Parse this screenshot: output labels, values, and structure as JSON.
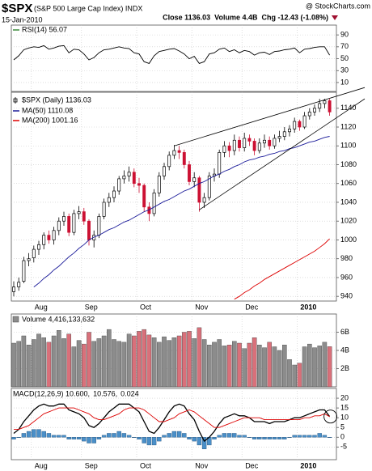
{
  "header": {
    "symbol": "$SPX",
    "name": "(S&P 500 Large Cap Index) INDX",
    "date": "15-Jan-2010",
    "source": "@ StockCharts.com",
    "stats": "Close 1136.03  Volume 4.4B  Chg -12.43 (-1.08%)"
  },
  "chart_data": [
    {
      "type": "line",
      "name": "RSI(14) 56.07",
      "color": "#000000",
      "values": [
        48,
        55,
        65,
        68,
        70,
        69,
        72,
        66,
        68,
        71,
        72,
        60,
        66,
        65,
        58,
        48,
        52,
        60,
        65,
        66,
        68,
        70,
        68,
        67,
        60,
        58,
        45,
        42,
        55,
        62,
        64,
        66,
        67,
        63,
        58,
        50,
        54,
        42,
        45,
        58,
        60,
        66,
        68,
        62,
        65,
        60,
        64,
        62,
        56,
        60,
        61,
        57,
        62,
        63,
        65,
        66,
        68,
        60,
        66,
        67,
        69,
        70,
        70,
        56.07
      ],
      "ylim": [
        -5,
        106.5
      ],
      "yticks": [
        90,
        70,
        50,
        30,
        10
      ],
      "grid": true
    },
    {
      "type": "candlestick",
      "name": "$SPX (Daily) 1136.03",
      "up_color": "#000000",
      "down_color": "#cc1133",
      "categories": [
        null,
        null,
        null,
        null,
        "Aug",
        null,
        null,
        null,
        null,
        null,
        null,
        null,
        null,
        null,
        "Sep",
        null,
        null,
        null,
        null,
        null,
        null,
        null,
        null,
        null,
        null,
        "Oct",
        null,
        null,
        null,
        null,
        null,
        null,
        null,
        null,
        null,
        null,
        "Nov",
        null,
        null,
        null,
        null,
        null,
        null,
        null,
        null,
        null,
        "Dec",
        null,
        null,
        null,
        null,
        null,
        null,
        null,
        null,
        null,
        null,
        "2010",
        null,
        null,
        null,
        null,
        null,
        null
      ],
      "open": [
        945,
        950,
        956,
        978,
        981,
        990,
        995,
        1005,
        1000,
        1010,
        1020,
        1025,
        1008,
        1028,
        1030,
        1020,
        1000,
        1005,
        1025,
        1040,
        1045,
        1052,
        1065,
        1068,
        1072,
        1060,
        1058,
        1035,
        1028,
        1050,
        1068,
        1078,
        1090,
        1095,
        1093,
        1080,
        1062,
        1066,
        1040,
        1045,
        1068,
        1070,
        1093,
        1100,
        1095,
        1106,
        1098,
        1108,
        1105,
        1095,
        1103,
        1106,
        1100,
        1108,
        1110,
        1115,
        1118,
        1126,
        1120,
        1132,
        1136,
        1140,
        1145,
        1148
      ],
      "high": [
        956,
        960,
        982,
        986,
        994,
        999,
        1008,
        1010,
        1014,
        1024,
        1030,
        1028,
        1032,
        1036,
        1034,
        1022,
        1010,
        1028,
        1044,
        1050,
        1057,
        1068,
        1074,
        1078,
        1076,
        1066,
        1060,
        1040,
        1054,
        1072,
        1082,
        1094,
        1101,
        1100,
        1096,
        1084,
        1072,
        1068,
        1050,
        1072,
        1076,
        1096,
        1105,
        1104,
        1112,
        1110,
        1114,
        1112,
        1108,
        1108,
        1112,
        1110,
        1112,
        1116,
        1120,
        1122,
        1130,
        1128,
        1136,
        1140,
        1144,
        1150,
        1150,
        1150
      ],
      "low": [
        940,
        946,
        954,
        972,
        976,
        984,
        990,
        996,
        995,
        1005,
        1015,
        1004,
        1005,
        1022,
        1016,
        994,
        992,
        1002,
        1022,
        1035,
        1040,
        1048,
        1060,
        1062,
        1056,
        1050,
        1030,
        1020,
        1025,
        1046,
        1064,
        1074,
        1086,
        1086,
        1076,
        1058,
        1056,
        1030,
        1034,
        1042,
        1062,
        1066,
        1088,
        1088,
        1090,
        1094,
        1094,
        1100,
        1090,
        1092,
        1098,
        1096,
        1097,
        1104,
        1106,
        1110,
        1114,
        1116,
        1118,
        1128,
        1132,
        1136,
        1140,
        1132
      ],
      "close": [
        950,
        955,
        978,
        980,
        990,
        995,
        1005,
        1000,
        1010,
        1020,
        1025,
        1008,
        1028,
        1030,
        1020,
        1000,
        1005,
        1025,
        1040,
        1045,
        1052,
        1065,
        1068,
        1072,
        1060,
        1058,
        1035,
        1028,
        1050,
        1068,
        1078,
        1090,
        1095,
        1093,
        1080,
        1062,
        1066,
        1040,
        1045,
        1068,
        1070,
        1093,
        1100,
        1095,
        1106,
        1098,
        1108,
        1105,
        1095,
        1103,
        1106,
        1100,
        1108,
        1110,
        1115,
        1118,
        1126,
        1120,
        1132,
        1136,
        1140,
        1145,
        1148,
        1136.03
      ],
      "series": [
        {
          "name": "MA(50) 1110.08",
          "color": "#1a1a99",
          "values": [
            null,
            null,
            null,
            null,
            950,
            954,
            959,
            963,
            968,
            972,
            977,
            982,
            986,
            991,
            995,
            1000,
            1003,
            1005,
            1008,
            1011,
            1013,
            1016,
            1019,
            1021,
            1024,
            1027,
            1030,
            1032,
            1035,
            1038,
            1041,
            1043,
            1046,
            1049,
            1052,
            1054,
            1057,
            1060,
            1062,
            1065,
            1068,
            1070,
            1073,
            1075,
            1078,
            1080,
            1083,
            1085,
            1086,
            1088,
            1089,
            1091,
            1092,
            1094,
            1095,
            1097,
            1098,
            1100,
            1102,
            1104,
            1105,
            1107,
            1109,
            1110.08
          ]
        },
        {
          "name": "MA(200) 1001.16",
          "color": "#dd0000",
          "values": [
            null,
            null,
            null,
            null,
            null,
            null,
            null,
            null,
            null,
            null,
            null,
            null,
            null,
            null,
            null,
            null,
            null,
            null,
            null,
            null,
            null,
            null,
            null,
            null,
            null,
            null,
            null,
            null,
            null,
            null,
            null,
            null,
            null,
            null,
            null,
            null,
            null,
            null,
            null,
            null,
            null,
            null,
            null,
            null,
            937,
            940,
            944,
            947,
            951,
            954,
            958,
            961,
            964,
            967,
            970,
            973,
            976,
            979,
            982,
            985,
            988,
            992,
            996,
            1001.16
          ]
        }
      ],
      "trendlines": [
        {
          "x": [
            32,
            70
          ],
          "y": [
            1100,
            1162
          ]
        },
        {
          "x": [
            37,
            70
          ],
          "y": [
            1032,
            1150
          ]
        }
      ],
      "ylim": [
        935,
        1157
      ],
      "yticks": [
        1140,
        1120,
        1100,
        1080,
        1060,
        1040,
        1020,
        1000,
        980,
        960,
        940
      ],
      "grid": true
    },
    {
      "type": "bar",
      "name": "Volume 4,416,133,632",
      "up_color": "#8c8c8c",
      "down_color": "#d9707a",
      "values": [
        4800000000,
        5000000000,
        5600000000,
        4600000000,
        5200000000,
        5800000000,
        5400000000,
        4900000000,
        5600000000,
        6200000000,
        5300000000,
        5800000000,
        4400000000,
        5100000000,
        4700000000,
        6000000000,
        5000000000,
        5300000000,
        5600000000,
        6300000000,
        5200000000,
        5000000000,
        4900000000,
        5800000000,
        5600000000,
        6100000000,
        6300000000,
        5700000000,
        5400000000,
        4900000000,
        5500000000,
        5100000000,
        5400000000,
        5600000000,
        6000000000,
        6100000000,
        5300000000,
        6500000000,
        5200000000,
        4600000000,
        4900000000,
        5200000000,
        4500000000,
        4600000000,
        5000000000,
        4800000000,
        4200000000,
        4800000000,
        5400000000,
        4600000000,
        4300000000,
        4900000000,
        4400000000,
        4000000000,
        4600000000,
        3000000000,
        2400000000,
        2600000000,
        4400000000,
        4700000000,
        4300000000,
        4500000000,
        4900000000,
        4416133632
      ],
      "ylim": [
        0,
        8000000000
      ],
      "yticks": [
        {
          "value": 6000000000,
          "label": "6B"
        },
        {
          "value": 4000000000,
          "label": "4B"
        },
        {
          "value": 2000000000,
          "label": "2B"
        }
      ],
      "grid": true
    },
    {
      "type": "line",
      "categories": [
        null,
        null,
        null,
        null,
        "Aug",
        null,
        null,
        null,
        null,
        null,
        null,
        null,
        null,
        null,
        "Sep",
        null,
        null,
        null,
        null,
        null,
        null,
        null,
        null,
        null,
        null,
        "Oct",
        null,
        null,
        null,
        null,
        null,
        null,
        null,
        null,
        null,
        null,
        "Nov",
        null,
        null,
        null,
        null,
        null,
        null,
        null,
        null,
        null,
        "Dec",
        null,
        null,
        null,
        null,
        null,
        null,
        null,
        null,
        null,
        null,
        "2010",
        null,
        null,
        null,
        null,
        null,
        null
      ],
      "series": [
        {
          "name": "MACD(12,26,9) 10.600,",
          "color": "#000000",
          "values": [
            2,
            4,
            8,
            11,
            14,
            16,
            17,
            16,
            16,
            17,
            17,
            14,
            13,
            12,
            10,
            6,
            5,
            7,
            10,
            13,
            15,
            17,
            17,
            17,
            15,
            13,
            8,
            3,
            2,
            5,
            9,
            13,
            16,
            17,
            16,
            12,
            9,
            3,
            -2,
            0,
            3,
            7,
            10,
            11,
            12,
            11,
            11,
            10,
            8,
            8,
            8,
            7,
            8,
            8,
            8,
            9,
            10,
            10,
            11,
            12,
            13,
            14,
            14,
            10.6
          ]
        },
        {
          "name": "10.576,",
          "color": "#dd0000",
          "values": [
            4,
            4,
            5,
            6,
            8,
            10,
            12,
            13,
            14,
            15,
            15,
            15,
            15,
            14,
            13,
            12,
            10,
            9,
            9,
            10,
            11,
            12,
            14,
            15,
            15,
            15,
            14,
            12,
            10,
            8,
            8,
            9,
            10,
            12,
            13,
            14,
            13,
            11,
            9,
            7,
            5,
            5,
            6,
            7,
            8,
            9,
            10,
            10,
            10,
            10,
            9,
            9,
            9,
            9,
            9,
            9,
            9,
            9,
            10,
            10,
            11,
            11,
            12,
            10.576
          ]
        }
      ],
      "histogram": {
        "name": "0.024",
        "color": "#4a8fc8",
        "values": [
          -1,
          0,
          2,
          3,
          4,
          4,
          3,
          2,
          1,
          1,
          1,
          -1,
          -1,
          -1,
          -2,
          -3,
          -3,
          -1,
          1,
          2,
          2,
          3,
          2,
          1,
          0,
          -1,
          -3,
          -4,
          -4,
          -2,
          1,
          2,
          3,
          3,
          2,
          -1,
          -2,
          -4,
          -6,
          -4,
          -1,
          1,
          2,
          2,
          2,
          1,
          1,
          0,
          -1,
          -1,
          -1,
          -1,
          -1,
          -1,
          -1,
          0,
          1,
          1,
          1,
          1,
          1,
          2,
          1,
          0.024
        ]
      },
      "ylim": [
        -11.5,
        25
      ],
      "yticks": [
        20,
        15,
        10,
        5,
        0,
        -5
      ],
      "grid": true
    }
  ]
}
